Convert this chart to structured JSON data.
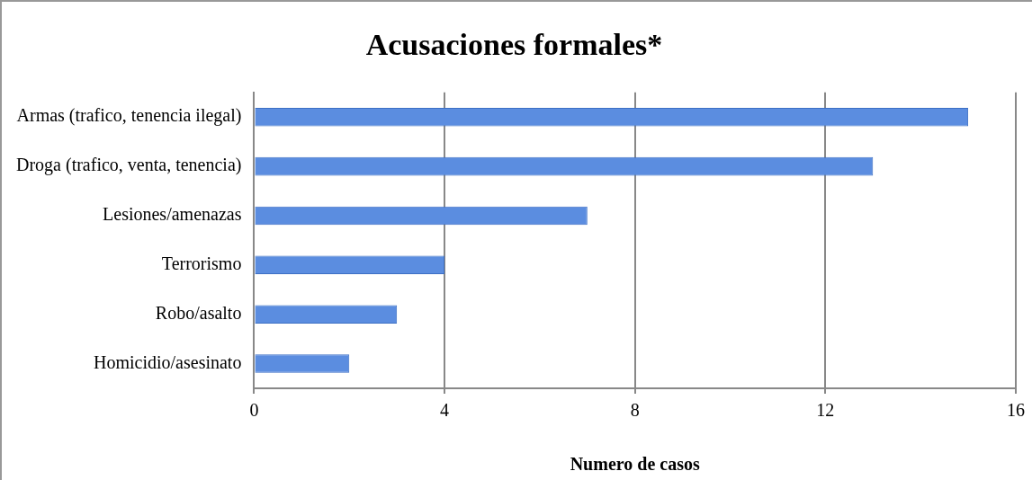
{
  "chart_data": {
    "type": "bar",
    "orientation": "horizontal",
    "title": "Acusaciones formales*",
    "xlabel": "Numero de casos",
    "categories": [
      "Armas (trafico, tenencia ilegal)",
      "Droga (trafico, venta, tenencia)",
      "Lesiones/amenazas",
      "Terrorismo",
      "Robo/asalto",
      "Homicidio/asesinato"
    ],
    "values": [
      15,
      13,
      7,
      4,
      3,
      2
    ],
    "color": "#5b8de0",
    "xlim": [
      0,
      16
    ],
    "xticks": [
      0,
      4,
      8,
      12,
      16
    ],
    "grid": "x",
    "legend": false
  }
}
